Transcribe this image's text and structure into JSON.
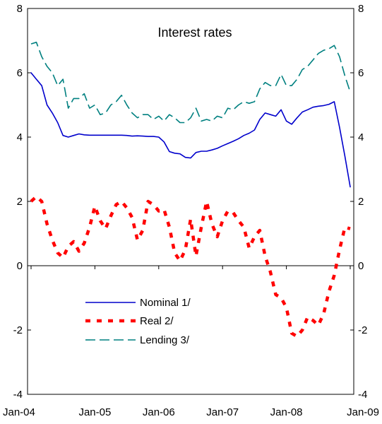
{
  "chart_data": {
    "type": "line",
    "title": "Interest rates",
    "xlabel": "",
    "ylabel": "",
    "ylim": [
      -4,
      8
    ],
    "y_ticks": [
      -4,
      -2,
      0,
      2,
      4,
      6,
      8
    ],
    "y_tick_labels": [
      "-4",
      "-2",
      "0",
      "2",
      "4",
      "6",
      "8"
    ],
    "x_ticks": [
      2004.0,
      2005.0,
      2006.0,
      2007.0,
      2008.0,
      2009.0
    ],
    "x_tick_labels": [
      "Jan-04",
      "Jan-05",
      "Jan-06",
      "Jan-07",
      "Jan-08",
      "Jan-09"
    ],
    "xlim": [
      2004.0,
      2009.0
    ],
    "dual_y_axis": true,
    "grid": false,
    "legend_position": "center-left",
    "series": [
      {
        "name": "Nominal 1/",
        "color": "#0000cc",
        "style": "solid",
        "x": [
          2004.0,
          2004.083,
          2004.167,
          2004.25,
          2004.333,
          2004.417,
          2004.5,
          2004.583,
          2004.667,
          2004.75,
          2004.833,
          2004.917,
          2005.0,
          2005.083,
          2005.167,
          2005.25,
          2005.333,
          2005.417,
          2005.5,
          2005.583,
          2005.667,
          2005.75,
          2005.833,
          2005.917,
          2006.0,
          2006.083,
          2006.167,
          2006.25,
          2006.333,
          2006.417,
          2006.5,
          2006.583,
          2006.667,
          2006.75,
          2006.833,
          2006.917,
          2007.0,
          2007.083,
          2007.167,
          2007.25,
          2007.333,
          2007.417,
          2007.5,
          2007.583,
          2007.667,
          2007.75,
          2007.833,
          2007.917,
          2008.0,
          2008.083,
          2008.167,
          2008.25,
          2008.333,
          2008.417,
          2008.5,
          2008.583,
          2008.667,
          2008.75,
          2008.833,
          2008.917,
          2009.0
        ],
        "values": [
          6.0,
          5.8,
          5.6,
          5.0,
          4.75,
          4.45,
          4.05,
          4.0,
          4.05,
          4.1,
          4.07,
          4.06,
          4.06,
          4.06,
          4.06,
          4.06,
          4.06,
          4.06,
          4.05,
          4.03,
          4.04,
          4.03,
          4.02,
          4.02,
          4.0,
          3.85,
          3.55,
          3.5,
          3.48,
          3.37,
          3.35,
          3.52,
          3.56,
          3.56,
          3.6,
          3.65,
          3.73,
          3.8,
          3.87,
          3.95,
          4.05,
          4.12,
          4.22,
          4.55,
          4.75,
          4.7,
          4.65,
          4.85,
          4.5,
          4.4,
          4.6,
          4.78,
          4.85,
          4.93,
          4.96,
          4.98,
          5.02,
          5.1,
          4.3,
          3.4,
          2.45
        ]
      },
      {
        "name": "Real 2/",
        "color": "#ff0000",
        "style": "dotted",
        "x": [
          2004.0,
          2004.083,
          2004.167,
          2004.25,
          2004.333,
          2004.417,
          2004.5,
          2004.583,
          2004.667,
          2004.75,
          2004.833,
          2004.917,
          2005.0,
          2005.083,
          2005.167,
          2005.25,
          2005.333,
          2005.417,
          2005.5,
          2005.583,
          2005.667,
          2005.75,
          2005.833,
          2005.917,
          2006.0,
          2006.083,
          2006.167,
          2006.25,
          2006.333,
          2006.417,
          2006.5,
          2006.583,
          2006.667,
          2006.75,
          2006.833,
          2006.917,
          2007.0,
          2007.083,
          2007.167,
          2007.25,
          2007.333,
          2007.417,
          2007.5,
          2007.583,
          2007.667,
          2007.75,
          2007.833,
          2007.917,
          2008.0,
          2008.083,
          2008.167,
          2008.25,
          2008.333,
          2008.417,
          2008.5,
          2008.583,
          2008.667,
          2008.75,
          2008.833,
          2008.917,
          2009.0
        ],
        "values": [
          2.0,
          2.15,
          2.0,
          1.3,
          0.8,
          0.4,
          0.25,
          0.6,
          0.75,
          0.45,
          0.7,
          1.2,
          1.85,
          1.4,
          1.15,
          1.55,
          1.9,
          2.0,
          1.8,
          1.5,
          0.8,
          1.1,
          2.0,
          1.9,
          1.7,
          1.75,
          1.2,
          0.4,
          0.15,
          0.5,
          1.45,
          0.3,
          1.2,
          2.0,
          1.3,
          0.9,
          1.4,
          1.7,
          1.65,
          1.4,
          1.2,
          0.55,
          0.9,
          1.1,
          0.3,
          -0.2,
          -0.9,
          -1.0,
          -1.3,
          -2.1,
          -2.2,
          -2.0,
          -1.6,
          -1.7,
          -1.85,
          -1.5,
          -0.8,
          -0.3,
          0.5,
          1.2,
          1.15
        ]
      },
      {
        "name": "Lending 3/",
        "color": "#008080",
        "style": "dashed",
        "x": [
          2004.0,
          2004.083,
          2004.167,
          2004.25,
          2004.333,
          2004.417,
          2004.5,
          2004.583,
          2004.667,
          2004.75,
          2004.833,
          2004.917,
          2005.0,
          2005.083,
          2005.167,
          2005.25,
          2005.333,
          2005.417,
          2005.5,
          2005.583,
          2005.667,
          2005.75,
          2005.833,
          2005.917,
          2006.0,
          2006.083,
          2006.167,
          2006.25,
          2006.333,
          2006.417,
          2006.5,
          2006.583,
          2006.667,
          2006.75,
          2006.833,
          2006.917,
          2007.0,
          2007.083,
          2007.167,
          2007.25,
          2007.333,
          2007.417,
          2007.5,
          2007.583,
          2007.667,
          2007.75,
          2007.833,
          2007.917,
          2008.0,
          2008.083,
          2008.167,
          2008.25,
          2008.333,
          2008.417,
          2008.5,
          2008.583,
          2008.667,
          2008.75,
          2008.833,
          2008.917,
          2009.0
        ],
        "values": [
          6.9,
          6.95,
          6.5,
          6.2,
          6.0,
          5.6,
          5.8,
          4.9,
          5.2,
          5.2,
          5.35,
          4.9,
          5.0,
          4.7,
          4.75,
          5.0,
          5.1,
          5.3,
          5.0,
          4.75,
          4.6,
          4.7,
          4.7,
          4.55,
          4.65,
          4.5,
          4.7,
          4.6,
          4.45,
          4.45,
          4.6,
          4.9,
          4.5,
          4.55,
          4.5,
          4.65,
          4.6,
          4.9,
          4.85,
          5.0,
          5.1,
          5.05,
          5.1,
          5.5,
          5.7,
          5.6,
          5.6,
          5.95,
          5.6,
          5.6,
          5.8,
          6.1,
          6.2,
          6.4,
          6.6,
          6.7,
          6.75,
          6.85,
          6.5,
          5.9,
          5.4
        ]
      }
    ]
  }
}
